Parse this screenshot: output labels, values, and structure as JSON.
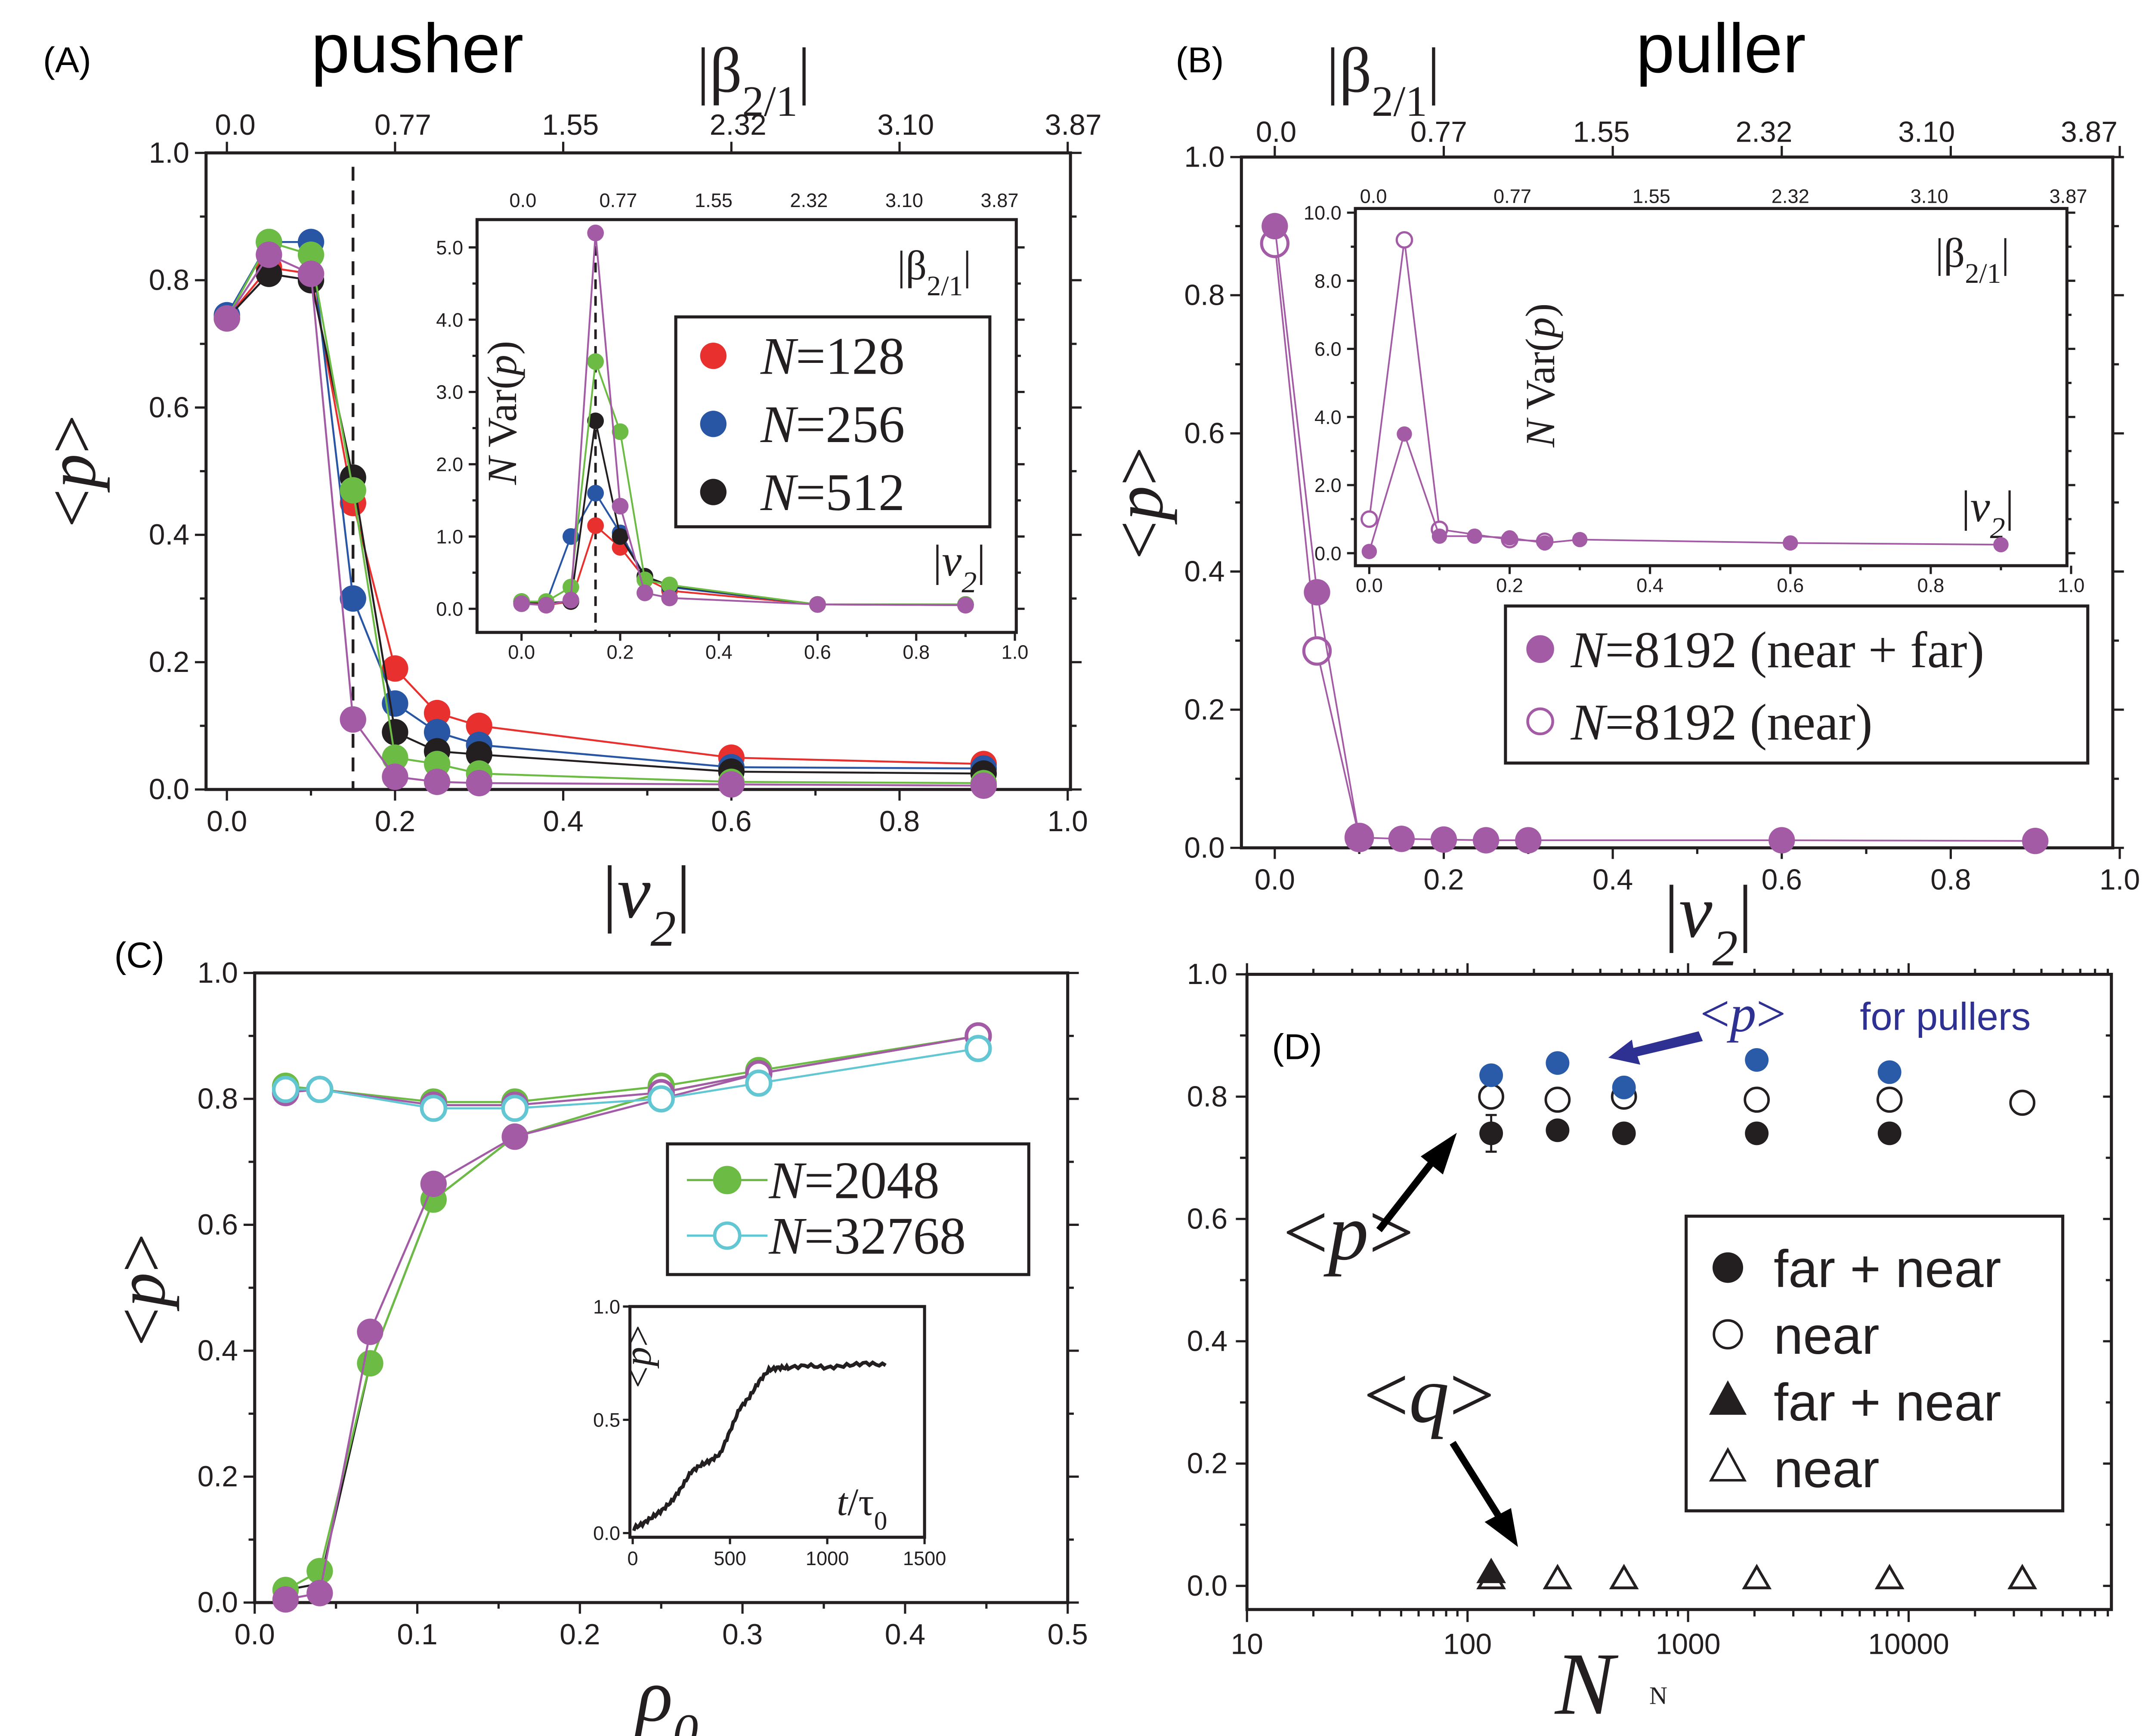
{
  "figure": {
    "panel_labels": [
      "(A)",
      "(B)",
      "(C)",
      "(D)"
    ],
    "titles": {
      "A": "pusher",
      "B": "puller"
    }
  },
  "chart_data": [
    {
      "panel": "A",
      "type": "line",
      "title": "pusher",
      "xlabel": "|v2|",
      "ylabel": "<p>",
      "top_xlabel": "|β2/1|",
      "xlim": [
        -0.02,
        1.0
      ],
      "ylim": [
        0.0,
        1.0
      ],
      "xticks": [
        "0.0",
        "0.2",
        "0.4",
        "0.6",
        "0.8",
        "1.0"
      ],
      "yticks": [
        "0.0",
        "0.2",
        "0.4",
        "0.6",
        "0.8",
        "1.0"
      ],
      "top_xticks": [
        "0.0",
        "0.77",
        "1.55",
        "2.32",
        "3.10",
        "3.87"
      ],
      "vline_dashed_x": 0.15,
      "x": [
        0.0,
        0.05,
        0.1,
        0.15,
        0.2,
        0.25,
        0.3,
        0.6,
        0.9
      ],
      "series": [
        {
          "name": "N=128",
          "color": "#e8312f",
          "marker": "filled-circle",
          "values": [
            0.74,
            0.82,
            0.81,
            0.45,
            0.19,
            0.12,
            0.1,
            0.05,
            0.04
          ]
        },
        {
          "name": "N=256",
          "color": "#2856a5",
          "marker": "filled-circle",
          "values": [
            0.745,
            0.86,
            0.86,
            0.3,
            0.135,
            0.09,
            0.07,
            0.035,
            0.033
          ]
        },
        {
          "name": "N=512",
          "color": "#231f20",
          "marker": "filled-circle",
          "values": [
            0.74,
            0.81,
            0.8,
            0.49,
            0.09,
            0.06,
            0.055,
            0.028,
            0.025
          ]
        },
        {
          "name": "green",
          "color": "#6cbb45",
          "marker": "filled-circle",
          "values": [
            0.74,
            0.86,
            0.84,
            0.47,
            0.05,
            0.04,
            0.025,
            0.012,
            0.01
          ]
        },
        {
          "name": "purple",
          "color": "#a35ba6",
          "marker": "filled-circle",
          "values": [
            0.74,
            0.84,
            0.81,
            0.11,
            0.02,
            0.012,
            0.01,
            0.008,
            0.006
          ]
        }
      ],
      "legend": {
        "placement": "inset-right",
        "entries": [
          "N=128",
          "N=256",
          "N=512"
        ]
      },
      "inset": {
        "type": "line",
        "ylabel": "N Var(p)",
        "xlabel": "|v2|",
        "top_xlabel": "|β2/1|",
        "xlim": [
          -0.1,
          1.0
        ],
        "ylim": [
          -0.2,
          5.5
        ],
        "xticks": [
          "0.0",
          "0.2",
          "0.4",
          "0.6",
          "0.8",
          "1.0"
        ],
        "yticks": [
          "0.0",
          "1.0",
          "2.0",
          "3.0",
          "4.0",
          "5.0"
        ],
        "top_xticks": [
          "0.0",
          "0.77",
          "1.55",
          "2.32",
          "3.10",
          "3.87"
        ],
        "vline_dashed_x": 0.15,
        "series": [
          {
            "name": "N=128",
            "color": "#e8312f",
            "x": [
              0.0,
              0.05,
              0.1,
              0.15,
              0.2,
              0.25,
              0.3,
              0.6,
              0.9
            ],
            "values": [
              0.08,
              0.05,
              0.1,
              1.15,
              0.85,
              0.42,
              0.25,
              0.06,
              0.05
            ]
          },
          {
            "name": "N=256",
            "color": "#2856a5",
            "x": [
              0.0,
              0.05,
              0.1,
              0.15,
              0.2,
              0.25,
              0.3,
              0.6,
              0.9
            ],
            "values": [
              0.1,
              0.08,
              1.0,
              1.6,
              1.05,
              0.45,
              0.3,
              0.06,
              0.06
            ]
          },
          {
            "name": "N=512",
            "color": "#231f20",
            "x": [
              0.0,
              0.05,
              0.1,
              0.15,
              0.2,
              0.25,
              0.3,
              0.6,
              0.9
            ],
            "values": [
              0.1,
              0.08,
              0.1,
              2.6,
              1.0,
              0.45,
              0.32,
              0.06,
              0.06
            ]
          },
          {
            "name": "green",
            "color": "#6cbb45",
            "x": [
              0.0,
              0.05,
              0.1,
              0.15,
              0.2,
              0.25,
              0.3,
              0.6,
              0.9
            ],
            "values": [
              0.1,
              0.1,
              0.3,
              3.42,
              2.45,
              0.4,
              0.33,
              0.06,
              0.06
            ]
          },
          {
            "name": "purple",
            "color": "#a35ba6",
            "x": [
              0.0,
              0.05,
              0.1,
              0.15,
              0.2,
              0.25,
              0.3,
              0.6,
              0.9
            ],
            "values": [
              0.07,
              0.05,
              0.12,
              5.2,
              1.42,
              0.22,
              0.15,
              0.06,
              0.05
            ]
          }
        ]
      }
    },
    {
      "panel": "B",
      "type": "line",
      "title": "puller",
      "xlabel": "|v2|",
      "ylabel": "<p>",
      "top_xlabel": "|β2/1|",
      "xlim": [
        -0.02,
        1.0
      ],
      "ylim": [
        0.0,
        1.0
      ],
      "xticks": [
        "0.0",
        "0.2",
        "0.4",
        "0.6",
        "0.8",
        "1.0"
      ],
      "yticks": [
        "0.0",
        "0.2",
        "0.4",
        "0.6",
        "0.8",
        "1.0"
      ],
      "top_xticks": [
        "0.0",
        "0.77",
        "1.55",
        "2.32",
        "3.10",
        "3.87"
      ],
      "series": [
        {
          "name": "N=8192 (near + far)",
          "color": "#a35ba6",
          "marker": "filled-circle",
          "x": [
            0.0,
            0.05,
            0.1,
            0.15,
            0.2,
            0.25,
            0.3,
            0.6,
            0.9
          ],
          "values": [
            0.9,
            0.37,
            0.015,
            0.013,
            0.012,
            0.011,
            0.011,
            0.011,
            0.01
          ]
        },
        {
          "name": "N=8192 (near)",
          "color": "#a35ba6",
          "marker": "open-circle",
          "x": [
            0.0,
            0.05,
            0.1
          ],
          "values": [
            0.875,
            0.285,
            0.015
          ]
        }
      ],
      "legend": {
        "placement": "bottom-right",
        "entries": [
          "N=8192 (near + far)",
          "N=8192 (near)"
        ]
      },
      "inset": {
        "type": "line",
        "ylabel": "N Var(p)",
        "xlabel": "|v2|",
        "top_xlabel": "|β2/1|",
        "xlim": [
          -0.02,
          1.0
        ],
        "ylim": [
          0.0,
          10.0
        ],
        "xticks": [
          "0.0",
          "0.2",
          "0.4",
          "0.6",
          "0.8",
          "1.0"
        ],
        "yticks": [
          "0.0",
          "2.0",
          "4.0",
          "6.0",
          "8.0",
          "10.0"
        ],
        "top_xticks": [
          "0.0",
          "0.77",
          "1.55",
          "2.32",
          "3.10",
          "3.87"
        ],
        "series": [
          {
            "name": "near + far",
            "color": "#a35ba6",
            "marker": "filled-circle",
            "x": [
              0.0,
              0.05,
              0.1,
              0.15,
              0.2,
              0.25,
              0.3,
              0.6,
              0.9
            ],
            "values": [
              0.05,
              3.5,
              0.5,
              0.5,
              0.45,
              0.3,
              0.4,
              0.3,
              0.25
            ]
          },
          {
            "name": "near",
            "color": "#a35ba6",
            "marker": "open-circle",
            "x": [
              0.0,
              0.05,
              0.1,
              0.2,
              0.25
            ],
            "values": [
              1.0,
              9.2,
              0.7,
              0.4,
              0.35
            ]
          }
        ]
      }
    },
    {
      "panel": "C",
      "type": "line",
      "xlabel": "ρ0",
      "ylabel": "<p>",
      "xlim": [
        0.0,
        0.5
      ],
      "ylim": [
        0.0,
        1.0
      ],
      "xticks": [
        "0.0",
        "0.1",
        "0.2",
        "0.3",
        "0.4",
        "0.5"
      ],
      "yticks": [
        "0.0",
        "0.2",
        "0.4",
        "0.6",
        "0.8",
        "1.0"
      ],
      "series": [
        {
          "name": "N=2048",
          "color": "#6cbb45",
          "marker": "filled-circle",
          "x": [
            0.019,
            0.04,
            0.071,
            0.11,
            0.16,
            0.25,
            0.31,
            0.445
          ],
          "values": [
            0.02,
            0.05,
            0.38,
            0.64,
            0.74,
            0.81,
            0.84,
            0.9
          ]
        },
        {
          "name": "purple filled",
          "color": "#a35ba6",
          "marker": "filled-circle",
          "x": [
            0.019,
            0.04,
            0.071,
            0.11,
            0.16,
            0.25,
            0.31,
            0.445
          ],
          "values": [
            0.005,
            0.015,
            0.43,
            0.665,
            0.74,
            0.8,
            0.84,
            0.9
          ]
        },
        {
          "name": "black line",
          "color": "#231f20",
          "marker": "none",
          "x": [
            0.019,
            0.04,
            0.071,
            0.11,
            0.16,
            0.25,
            0.31,
            0.445
          ],
          "values": [
            0.02,
            0.03,
            0.38,
            0.64,
            0.74,
            0.81,
            0.84,
            0.9
          ]
        },
        {
          "name": "green open",
          "color": "#6cbb45",
          "marker": "open-circle",
          "x": [
            0.019,
            0.04,
            0.11,
            0.16,
            0.25,
            0.31,
            0.445
          ],
          "values": [
            0.82,
            0.815,
            0.795,
            0.795,
            0.82,
            0.845,
            0.9
          ]
        },
        {
          "name": "purple open",
          "color": "#a35ba6",
          "marker": "open-circle",
          "x": [
            0.019,
            0.04,
            0.11,
            0.16,
            0.25,
            0.31,
            0.445
          ],
          "values": [
            0.81,
            0.815,
            0.79,
            0.79,
            0.81,
            0.84,
            0.9
          ]
        },
        {
          "name": "N=32768",
          "color": "#63c7d3",
          "marker": "open-circle",
          "x": [
            0.019,
            0.04,
            0.11,
            0.16,
            0.25,
            0.31,
            0.445
          ],
          "values": [
            0.815,
            0.815,
            0.785,
            0.785,
            0.8,
            0.825,
            0.88
          ]
        }
      ],
      "legend": {
        "placement": "center-right",
        "entries": [
          "N=2048",
          "N=32768"
        ]
      },
      "inset": {
        "type": "line",
        "ylabel": "<p>",
        "xlabel": "t/τ0",
        "xlim": [
          0,
          1500
        ],
        "ylim": [
          0.0,
          1.0
        ],
        "xticks": [
          "0",
          "500",
          "1000",
          "1500"
        ],
        "yticks": [
          "0.0",
          "0.5",
          "1.0"
        ],
        "x": [
          0,
          50,
          100,
          150,
          200,
          250,
          300,
          350,
          400,
          450,
          500,
          550,
          600,
          650,
          700,
          750,
          800,
          900,
          1000,
          1100,
          1200,
          1300
        ],
        "values": [
          0.02,
          0.04,
          0.07,
          0.1,
          0.14,
          0.2,
          0.27,
          0.3,
          0.32,
          0.35,
          0.45,
          0.55,
          0.6,
          0.67,
          0.72,
          0.73,
          0.73,
          0.74,
          0.73,
          0.74,
          0.75,
          0.74
        ]
      }
    },
    {
      "panel": "D",
      "type": "scatter",
      "xlabel": "N",
      "xlabel_secondary": "N",
      "ylabel": "",
      "xscale": "log",
      "xlim": [
        10,
        50000
      ],
      "ylim": [
        -0.03,
        1.0
      ],
      "xticks": [
        "10",
        "100",
        "1000",
        "10000"
      ],
      "yticks": [
        "0.0",
        "0.2",
        "0.4",
        "0.6",
        "0.8",
        "1.0"
      ],
      "series": [
        {
          "name": "far + near",
          "quantity": "<p>",
          "color": "#231f20",
          "marker": "filled-circle",
          "x": [
            128,
            256,
            512,
            2048,
            8192
          ],
          "values": [
            0.74,
            0.745,
            0.74,
            0.74,
            0.74
          ],
          "error_first": 0.03
        },
        {
          "name": "near",
          "quantity": "<p>",
          "color": "#231f20",
          "marker": "open-circle",
          "x": [
            128,
            256,
            512,
            2048,
            8192,
            32768
          ],
          "values": [
            0.8,
            0.795,
            0.8,
            0.795,
            0.795,
            0.79
          ]
        },
        {
          "name": "far + near",
          "quantity": "<q>",
          "color": "#231f20",
          "marker": "filled-triangle",
          "x": [
            128
          ],
          "values": [
            0.02
          ]
        },
        {
          "name": "near",
          "quantity": "<q>",
          "color": "#231f20",
          "marker": "open-triangle",
          "x": [
            128,
            256,
            512,
            2048,
            8192,
            32768
          ],
          "values": [
            0.01,
            0.01,
            0.01,
            0.01,
            0.01,
            0.01
          ]
        },
        {
          "name": "<p> for pullers",
          "quantity": "<p>",
          "color": "#2a5ba8",
          "marker": "filled-circle",
          "x": [
            128,
            256,
            512,
            2048,
            8192
          ],
          "values": [
            0.835,
            0.855,
            0.815,
            0.86,
            0.84
          ]
        }
      ],
      "annotations": [
        {
          "text": "<p> for pullers",
          "color": "#2e3192"
        },
        {
          "text": "<p>"
        },
        {
          "text": "<q>"
        }
      ],
      "legend": {
        "placement": "bottom-right",
        "entries": [
          "far + near",
          "near",
          "far + near",
          "near"
        ]
      }
    }
  ]
}
